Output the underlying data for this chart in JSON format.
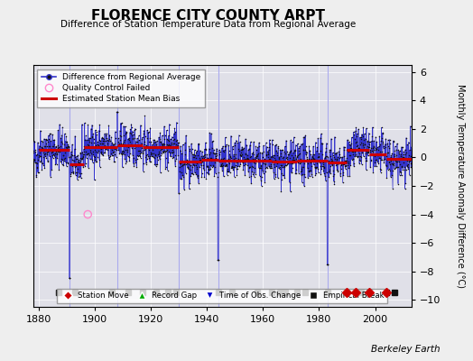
{
  "title": "FLORENCE CITY COUNTY ARPT",
  "subtitle": "Difference of Station Temperature Data from Regional Average",
  "ylabel": "Monthly Temperature Anomaly Difference (°C)",
  "xlabel_years": [
    1880,
    1900,
    1920,
    1940,
    1960,
    1980,
    2000
  ],
  "xlim": [
    1878,
    2013
  ],
  "ylim": [
    -10.5,
    6.5
  ],
  "yticks": [
    -10,
    -8,
    -6,
    -4,
    -2,
    0,
    2,
    4,
    6
  ],
  "background_color": "#eeeeee",
  "plot_bg_color": "#e0e0e8",
  "seed": 42,
  "bias_segments": [
    {
      "start": 1880,
      "end": 1891,
      "value": 0.55
    },
    {
      "start": 1891,
      "end": 1896,
      "value": -0.45
    },
    {
      "start": 1896,
      "end": 1908,
      "value": 0.75
    },
    {
      "start": 1908,
      "end": 1917,
      "value": 0.85
    },
    {
      "start": 1917,
      "end": 1930,
      "value": 0.7
    },
    {
      "start": 1930,
      "end": 1938,
      "value": -0.3
    },
    {
      "start": 1938,
      "end": 1944,
      "value": -0.15
    },
    {
      "start": 1944,
      "end": 1949,
      "value": -0.25
    },
    {
      "start": 1949,
      "end": 1958,
      "value": -0.25
    },
    {
      "start": 1958,
      "end": 1963,
      "value": -0.25
    },
    {
      "start": 1963,
      "end": 1972,
      "value": -0.3
    },
    {
      "start": 1972,
      "end": 1983,
      "value": -0.2
    },
    {
      "start": 1983,
      "end": 1990,
      "value": -0.35
    },
    {
      "start": 1990,
      "end": 1998,
      "value": 0.55
    },
    {
      "start": 1998,
      "end": 2004,
      "value": 0.25
    },
    {
      "start": 2004,
      "end": 2013,
      "value": -0.1
    }
  ],
  "vertical_lines": [
    1891,
    1908,
    1930,
    1944,
    1983
  ],
  "empirical_breaks": [
    1887,
    1893,
    1906,
    1912,
    1917,
    1922,
    1926,
    1929,
    1944,
    1949,
    1958,
    1963,
    1966,
    1968,
    1972,
    1975,
    1983,
    1990,
    1993,
    1995,
    1998,
    2004,
    2007
  ],
  "station_moves": [
    1990,
    1993,
    1998,
    2004
  ],
  "record_gaps": [],
  "obs_changes": [],
  "quality_control_failed": [
    {
      "year": 1897.5,
      "value": -4.0
    }
  ],
  "data_line_color": "#3333cc",
  "data_dot_color": "#111111",
  "bias_line_color": "#cc0000",
  "qc_color": "#ff88cc",
  "station_move_color": "#cc0000",
  "obs_change_color": "#0000cc",
  "record_gap_color": "#00aa00",
  "empirical_break_color": "#111111",
  "grid_color": "#ffffff",
  "vline_color": "#aaaaee",
  "berkeley_earth_text": "Berkeley Earth"
}
